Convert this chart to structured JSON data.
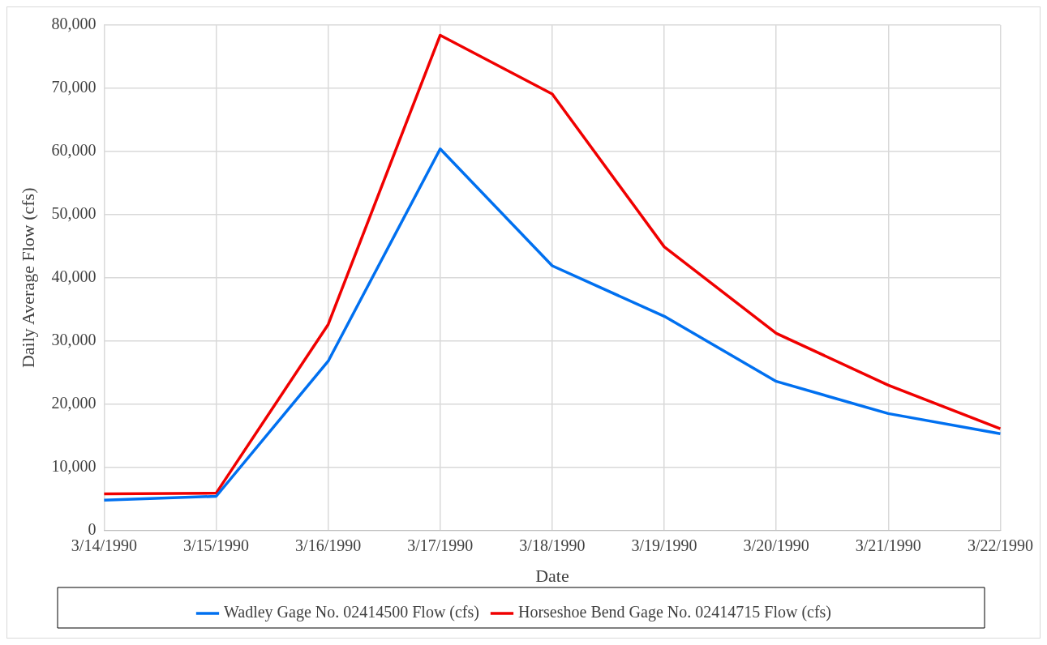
{
  "chart_data": {
    "type": "line",
    "xlabel": "Date",
    "ylabel": "Daily Average Flow (cfs)",
    "categories": [
      "3/14/1990",
      "3/15/1990",
      "3/16/1990",
      "3/17/1990",
      "3/18/1990",
      "3/19/1990",
      "3/20/1990",
      "3/21/1990",
      "3/22/1990"
    ],
    "series": [
      {
        "name": "Wadley Gage No. 02414500 Flow (cfs)",
        "color": "#0070f0",
        "values": [
          4800,
          5400,
          26800,
          60400,
          41900,
          33900,
          23600,
          18500,
          15300
        ]
      },
      {
        "name": "Horseshoe Bend Gage No. 02414715 Flow (cfs)",
        "color": "#f00000",
        "values": [
          5800,
          5900,
          32600,
          78400,
          69100,
          44900,
          31200,
          23000,
          16100
        ]
      }
    ],
    "ylim": [
      0,
      80000
    ],
    "yticks": [
      0,
      {
        "value": 10000,
        "label": "10,000"
      },
      {
        "value": 20000,
        "label": "20,000"
      },
      {
        "value": 30000,
        "label": "30,000"
      },
      {
        "value": 40000,
        "label": "40,000"
      },
      {
        "value": 50000,
        "label": "50,000"
      },
      {
        "value": 60000,
        "label": "60,000"
      },
      {
        "value": 70000,
        "label": "70,000"
      },
      {
        "value": 80000,
        "label": "80,000"
      }
    ],
    "grid": true,
    "legend": "bottom",
    "marker": "none",
    "line_style": "solid"
  }
}
